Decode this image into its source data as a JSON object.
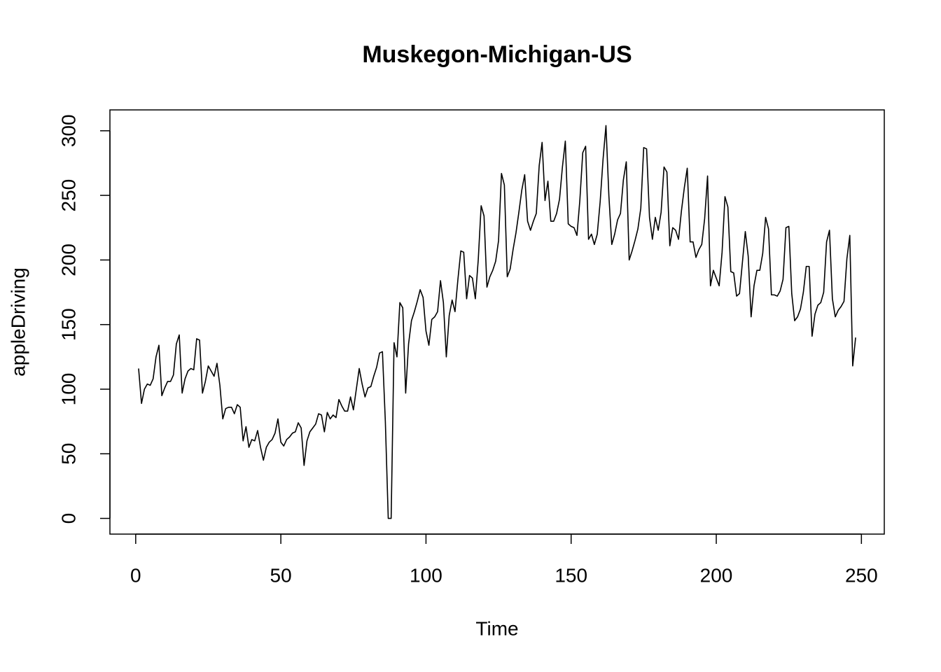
{
  "chart_data": {
    "type": "line",
    "title": "Muskegon-Michigan-US",
    "x_label": "Time",
    "y_label": "appleDriving",
    "x": [
      1,
      2,
      3,
      4,
      5,
      6,
      7,
      8,
      9,
      10,
      11,
      12,
      13,
      14,
      15,
      16,
      17,
      18,
      19,
      20,
      21,
      22,
      23,
      24,
      25,
      26,
      27,
      28,
      29,
      30,
      31,
      32,
      33,
      34,
      35,
      36,
      37,
      38,
      39,
      40,
      41,
      42,
      43,
      44,
      45,
      46,
      47,
      48,
      49,
      50,
      51,
      52,
      53,
      54,
      55,
      56,
      57,
      58,
      59,
      60,
      61,
      62,
      63,
      64,
      65,
      66,
      67,
      68,
      69,
      70,
      71,
      72,
      73,
      74,
      75,
      76,
      77,
      78,
      79,
      80,
      81,
      82,
      83,
      84,
      85,
      86,
      87,
      88,
      89,
      90,
      91,
      92,
      93,
      94,
      95,
      96,
      97,
      98,
      99,
      100,
      101,
      102,
      103,
      104,
      105,
      106,
      107,
      108,
      109,
      110,
      111,
      112,
      113,
      114,
      115,
      116,
      117,
      118,
      119,
      120,
      121,
      122,
      123,
      124,
      125,
      126,
      127,
      128,
      129,
      130,
      131,
      132,
      133,
      134,
      135,
      136,
      137,
      138,
      139,
      140,
      141,
      142,
      143,
      144,
      145,
      146,
      147,
      148,
      149,
      150,
      151,
      152,
      153,
      154,
      155,
      156,
      157,
      158,
      159,
      160,
      161,
      162,
      163,
      164,
      165,
      166,
      167,
      168,
      169,
      170,
      171,
      172,
      173,
      174,
      175,
      176,
      177,
      178,
      179,
      180,
      181,
      182,
      183,
      184,
      185,
      186,
      187,
      188,
      189,
      190,
      191,
      192,
      193,
      194,
      195,
      196,
      197,
      198,
      199,
      200,
      201,
      202,
      203,
      204,
      205,
      206,
      207,
      208,
      209,
      210,
      211,
      212,
      213,
      214,
      215,
      216,
      217,
      218,
      219,
      220,
      221,
      222,
      223,
      224,
      225,
      226,
      227,
      228,
      229,
      230,
      231,
      232,
      233,
      234,
      235,
      236,
      237,
      238,
      239,
      240,
      241,
      242,
      243,
      244,
      245,
      246,
      247,
      248
    ],
    "series": [
      {
        "name": "appleDriving",
        "color": "#000000",
        "values": [
          116,
          89,
          100,
          104,
          103,
          108,
          125,
          134,
          95,
          101,
          106,
          106,
          111,
          135,
          142,
          97,
          108,
          114,
          116,
          115,
          139,
          138,
          97,
          106,
          118,
          114,
          110,
          120,
          103,
          77,
          85,
          86,
          86,
          81,
          88,
          86,
          60,
          71,
          55,
          61,
          60,
          68,
          55,
          45,
          55,
          59,
          61,
          66,
          77,
          59,
          56,
          61,
          63,
          66,
          67,
          74,
          70,
          41,
          60,
          67,
          70,
          73,
          81,
          80,
          67,
          82,
          77,
          80,
          78,
          92,
          87,
          83,
          83,
          94,
          84,
          100,
          116,
          104,
          94,
          101,
          102,
          110,
          117,
          128,
          129,
          75,
          0,
          0,
          136,
          125,
          167,
          163,
          97,
          135,
          153,
          160,
          168,
          177,
          171,
          145,
          134,
          154,
          156,
          160,
          184,
          167,
          125,
          157,
          169,
          160,
          185,
          207,
          206,
          170,
          188,
          186,
          170,
          200,
          242,
          234,
          179,
          187,
          192,
          199,
          215,
          267,
          258,
          187,
          193,
          208,
          221,
          237,
          254,
          266,
          230,
          223,
          230,
          236,
          273,
          291,
          246,
          261,
          230,
          230,
          236,
          247,
          272,
          292,
          228,
          226,
          225,
          219,
          246,
          283,
          288,
          216,
          220,
          212,
          220,
          245,
          278,
          304,
          250,
          212,
          220,
          231,
          236,
          262,
          276,
          200,
          207,
          215,
          224,
          240,
          287,
          286,
          233,
          216,
          233,
          223,
          237,
          272,
          268,
          211,
          225,
          223,
          216,
          238,
          256,
          271,
          214,
          214,
          202,
          208,
          212,
          232,
          265,
          180,
          192,
          186,
          180,
          206,
          249,
          241,
          191,
          190,
          172,
          174,
          198,
          222,
          203,
          156,
          180,
          192,
          192,
          205,
          233,
          224,
          173,
          173,
          172,
          176,
          185,
          225,
          226,
          174,
          153,
          156,
          162,
          175,
          195,
          195,
          141,
          158,
          165,
          167,
          175,
          214,
          223,
          170,
          156,
          161,
          164,
          168,
          201,
          219,
          118,
          140
        ]
      }
    ],
    "xlim": [
      -8.88,
      257.88
    ],
    "ylim": [
      -12.16,
      316.16
    ],
    "xticks": [
      0,
      50,
      100,
      150,
      200,
      250
    ],
    "yticks": [
      0,
      50,
      100,
      150,
      200,
      250,
      300
    ]
  }
}
